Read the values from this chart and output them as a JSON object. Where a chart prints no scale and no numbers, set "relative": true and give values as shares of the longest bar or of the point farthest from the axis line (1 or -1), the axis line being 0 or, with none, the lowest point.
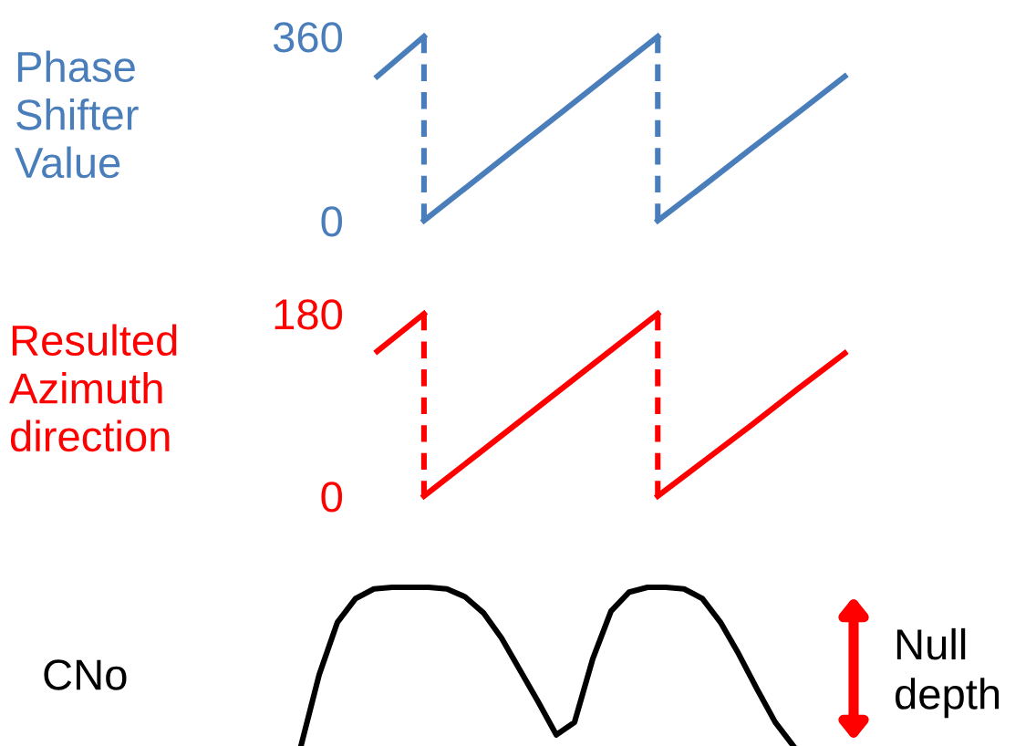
{
  "chart_data": [
    {
      "type": "line",
      "ylabel": "Phase\nShifter\nValue",
      "categories": [
        null,
        null,
        null,
        null,
        null,
        null,
        null,
        null,
        null,
        null,
        null
      ],
      "ylim": [
        0,
        360
      ],
      "yticks": [
        0,
        360
      ],
      "tick_labels": "y",
      "grid": false,
      "legend": false,
      "marker": "none",
      "line_style": "solid",
      "series": [
        {
          "color": "#4a7ebb",
          "values": [
            282,
            360,
            null,
            null,
            null,
            null,
            null,
            null,
            null,
            null,
            null
          ]
        },
        {
          "color": "#4a7ebb",
          "values": [
            null,
            0,
            72,
            144,
            216,
            288,
            360,
            null,
            null,
            null,
            null
          ]
        },
        {
          "color": "#4a7ebb",
          "values": [
            null,
            null,
            null,
            null,
            null,
            null,
            0,
            70,
            141,
            211,
            282
          ]
        }
      ]
    },
    {
      "type": "line",
      "ylabel": "Resulted\nAzimuth\ndirection",
      "categories": [
        null,
        null,
        null,
        null,
        null,
        null,
        null,
        null,
        null,
        null,
        null
      ],
      "ylim": [
        0,
        180
      ],
      "yticks": [
        0,
        180
      ],
      "tick_labels": "y",
      "grid": false,
      "legend": false,
      "marker": "none",
      "line_style": "solid",
      "series": [
        {
          "color": "#ff0000",
          "values": [
            143,
            180,
            null,
            null,
            null,
            null,
            null,
            null,
            null,
            null,
            null
          ]
        },
        {
          "color": "#ff0000",
          "values": [
            null,
            0,
            36,
            72,
            108,
            144,
            180,
            null,
            null,
            null,
            null
          ]
        },
        {
          "color": "#ff0000",
          "values": [
            null,
            null,
            null,
            null,
            null,
            null,
            0,
            35,
            70,
            106,
            141
          ]
        }
      ]
    },
    {
      "type": "line",
      "ylabel": "CNo",
      "relative": true,
      "categories": [
        null,
        null,
        null,
        null,
        null,
        null,
        null,
        null,
        null,
        null,
        null,
        null,
        null,
        null,
        null,
        null,
        null,
        null,
        null,
        null,
        null,
        null,
        null,
        null,
        null,
        null,
        null,
        null
      ],
      "tick_labels": false,
      "grid": false,
      "legend": false,
      "marker": "none",
      "line_style": "solid",
      "annotations": [
        "Null\ndepth"
      ],
      "series": [
        {
          "color": "#000000",
          "values": [
            0,
            0.45,
            0.78,
            0.93,
            0.99,
            1.0,
            1.0,
            1.0,
            0.99,
            0.94,
            0.84,
            0.68,
            0.48,
            0.28,
            0.07,
            0.15,
            0.55,
            0.85,
            0.97,
            1.0,
            1.0,
            0.99,
            0.93,
            0.78,
            0.58,
            0.36,
            0.15,
            0
          ]
        }
      ]
    }
  ]
}
